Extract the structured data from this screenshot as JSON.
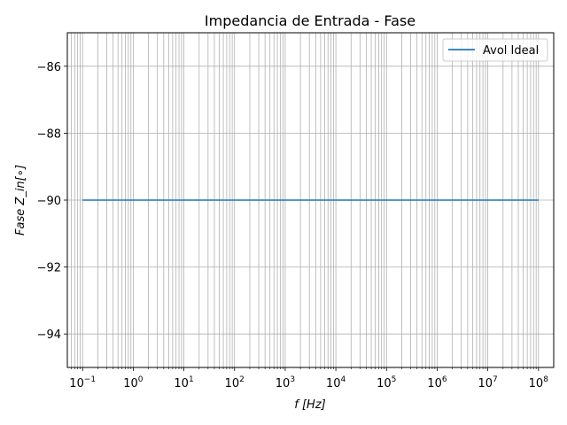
{
  "chart_data": {
    "type": "line",
    "title": "Impedancia de Entrada - Fase",
    "xlabel": "f   [Hz]",
    "ylabel": "Fase   Z_in[∘]",
    "xscale": "log",
    "xlim": [
      0.05,
      200000000
    ],
    "ylim": [
      -95,
      -85
    ],
    "x_ticks": [
      {
        "value": 0.1,
        "base": "10",
        "exp": "−1"
      },
      {
        "value": 1,
        "base": "10",
        "exp": "0"
      },
      {
        "value": 10,
        "base": "10",
        "exp": "1"
      },
      {
        "value": 100,
        "base": "10",
        "exp": "2"
      },
      {
        "value": 1000,
        "base": "10",
        "exp": "3"
      },
      {
        "value": 10000,
        "base": "10",
        "exp": "4"
      },
      {
        "value": 100000,
        "base": "10",
        "exp": "5"
      },
      {
        "value": 1000000,
        "base": "10",
        "exp": "6"
      },
      {
        "value": 10000000,
        "base": "10",
        "exp": "7"
      },
      {
        "value": 100000000,
        "base": "10",
        "exp": "8"
      }
    ],
    "y_ticks": [
      {
        "value": -86,
        "label": "−86"
      },
      {
        "value": -88,
        "label": "−88"
      },
      {
        "value": -90,
        "label": "−90"
      },
      {
        "value": -92,
        "label": "−92"
      },
      {
        "value": -94,
        "label": "−94"
      }
    ],
    "grid": true,
    "grid_which": "both",
    "legend": "top-right",
    "series": [
      {
        "name": "Avol Ideal",
        "color": "#1f77b4",
        "x": [
          0.1,
          100000000
        ],
        "y": [
          -90,
          -90
        ]
      }
    ]
  }
}
